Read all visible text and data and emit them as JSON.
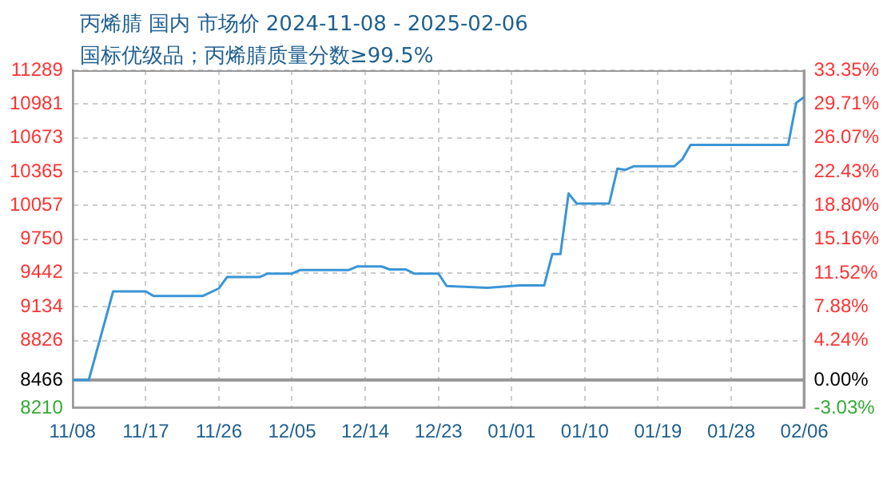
{
  "chart_data": {
    "type": "line",
    "title": "丙烯腈 国内 市场价 2024-11-08 - 2025-02-06",
    "subtitle": "国标优级品；丙烯腈质量分数≥99.5%",
    "x": [
      "2024-11-08",
      "2024-11-10",
      "2024-11-13",
      "2024-11-17",
      "2024-11-18",
      "2024-11-24",
      "2024-11-26",
      "2024-11-27",
      "2024-12-01",
      "2024-12-02",
      "2024-12-05",
      "2024-12-06",
      "2024-12-12",
      "2024-12-13",
      "2024-12-16",
      "2024-12-17",
      "2024-12-19",
      "2024-12-20",
      "2024-12-23",
      "2024-12-24",
      "2024-12-29",
      "2025-01-02",
      "2025-01-05",
      "2025-01-06",
      "2025-01-07",
      "2025-01-08",
      "2025-01-09",
      "2025-01-13",
      "2025-01-14",
      "2025-01-15",
      "2025-01-16",
      "2025-01-21",
      "2025-01-22",
      "2025-01-23",
      "2025-02-04",
      "2025-02-05",
      "2025-02-06"
    ],
    "series": [
      {
        "color": "#3a95d5",
        "values": [
          8466,
          8466,
          9274,
          9274,
          9231,
          9231,
          9301,
          9404,
          9404,
          9436,
          9436,
          9469,
          9469,
          9501,
          9501,
          9474,
          9474,
          9436,
          9436,
          9323,
          9307,
          9328,
          9328,
          9614,
          9614,
          10166,
          10074,
          10074,
          10392,
          10382,
          10414,
          10414,
          10479,
          10608,
          10608,
          10992,
          11046
        ]
      }
    ],
    "xlim": [
      "2024-11-08",
      "2025-02-06"
    ],
    "xticks": [
      {
        "value": "2024-11-08",
        "label": "11/08"
      },
      {
        "value": "2024-11-17",
        "label": "11/17"
      },
      {
        "value": "2024-11-26",
        "label": "11/26"
      },
      {
        "value": "2024-12-05",
        "label": "12/05"
      },
      {
        "value": "2024-12-14",
        "label": "12/14"
      },
      {
        "value": "2024-12-23",
        "label": "12/23"
      },
      {
        "value": "2025-01-01",
        "label": "01/01"
      },
      {
        "value": "2025-01-10",
        "label": "01/10"
      },
      {
        "value": "2025-01-19",
        "label": "01/19"
      },
      {
        "value": "2025-01-28",
        "label": "01/28"
      },
      {
        "value": "2025-02-06",
        "label": "02/06"
      }
    ],
    "ylim": [
      8210,
      11289
    ],
    "yticks": [
      8210,
      8466,
      8826,
      9134,
      9442,
      9750,
      10057,
      10365,
      10673,
      10981,
      11289
    ],
    "y2lim": [
      -3.03,
      33.35
    ],
    "y2ticks": [
      {
        "value": -3.03,
        "label": "-3.03%"
      },
      {
        "value": 0,
        "label": "0.00%"
      },
      {
        "value": 4.24,
        "label": "4.24%"
      },
      {
        "value": 7.88,
        "label": "7.88%"
      },
      {
        "value": 11.52,
        "label": "11.52%"
      },
      {
        "value": 15.16,
        "label": "15.16%"
      },
      {
        "value": 18.8,
        "label": "18.80%"
      },
      {
        "value": 22.43,
        "label": "22.43%"
      },
      {
        "value": 26.07,
        "label": "26.07%"
      },
      {
        "value": 29.71,
        "label": "29.71%"
      },
      {
        "value": 33.35,
        "label": "33.35%"
      }
    ],
    "ref_lines": [
      {
        "axis": "y",
        "value": 8466,
        "color": "#999999"
      }
    ],
    "grid": true,
    "line_style": "solid",
    "marker": "none",
    "legend": false
  }
}
